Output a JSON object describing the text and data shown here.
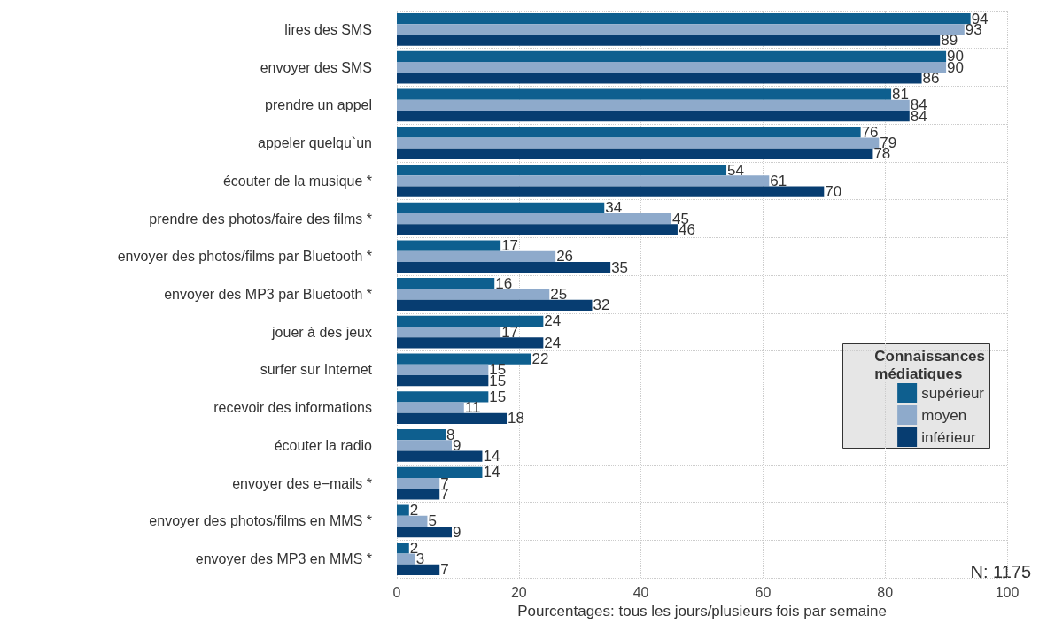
{
  "chart_data": {
    "type": "bar",
    "orientation": "horizontal",
    "categories": [
      "lires des SMS",
      "envoyer des SMS",
      "prendre un appel",
      "appeler quelqu`un",
      "écouter de la musique *",
      "prendre des photos/faire des films *",
      "envoyer des photos/films par Bluetooth *",
      "envoyer des MP3 par Bluetooth *",
      "jouer à des jeux",
      "surfer sur Internet",
      "recevoir des informations",
      "écouter la radio",
      "envoyer des e−mails *",
      "envoyer des photos/films en MMS *",
      "envoyer des MP3 en MMS *"
    ],
    "series": [
      {
        "name": "supérieur",
        "color": "#0e5f8f",
        "values": [
          94,
          90,
          81,
          76,
          54,
          34,
          17,
          16,
          24,
          22,
          15,
          8,
          14,
          2,
          2
        ]
      },
      {
        "name": "moyen",
        "color": "#8eaacb",
        "values": [
          93,
          90,
          84,
          79,
          61,
          45,
          26,
          25,
          17,
          15,
          11,
          9,
          7,
          5,
          3
        ]
      },
      {
        "name": "inférieur",
        "color": "#073d71",
        "values": [
          89,
          86,
          84,
          78,
          70,
          46,
          35,
          32,
          24,
          15,
          18,
          14,
          7,
          9,
          7
        ]
      }
    ],
    "xlabel": "Pourcentages: tous les jours/plusieurs fois par semaine",
    "legend_title": "Connaissances médiatiques",
    "annotations": [
      "N: 1175"
    ],
    "xlim": [
      0,
      100
    ],
    "xticks": [
      0,
      20,
      40,
      60,
      80,
      100
    ],
    "grid": true,
    "legend": "right",
    "data_labels": true
  }
}
